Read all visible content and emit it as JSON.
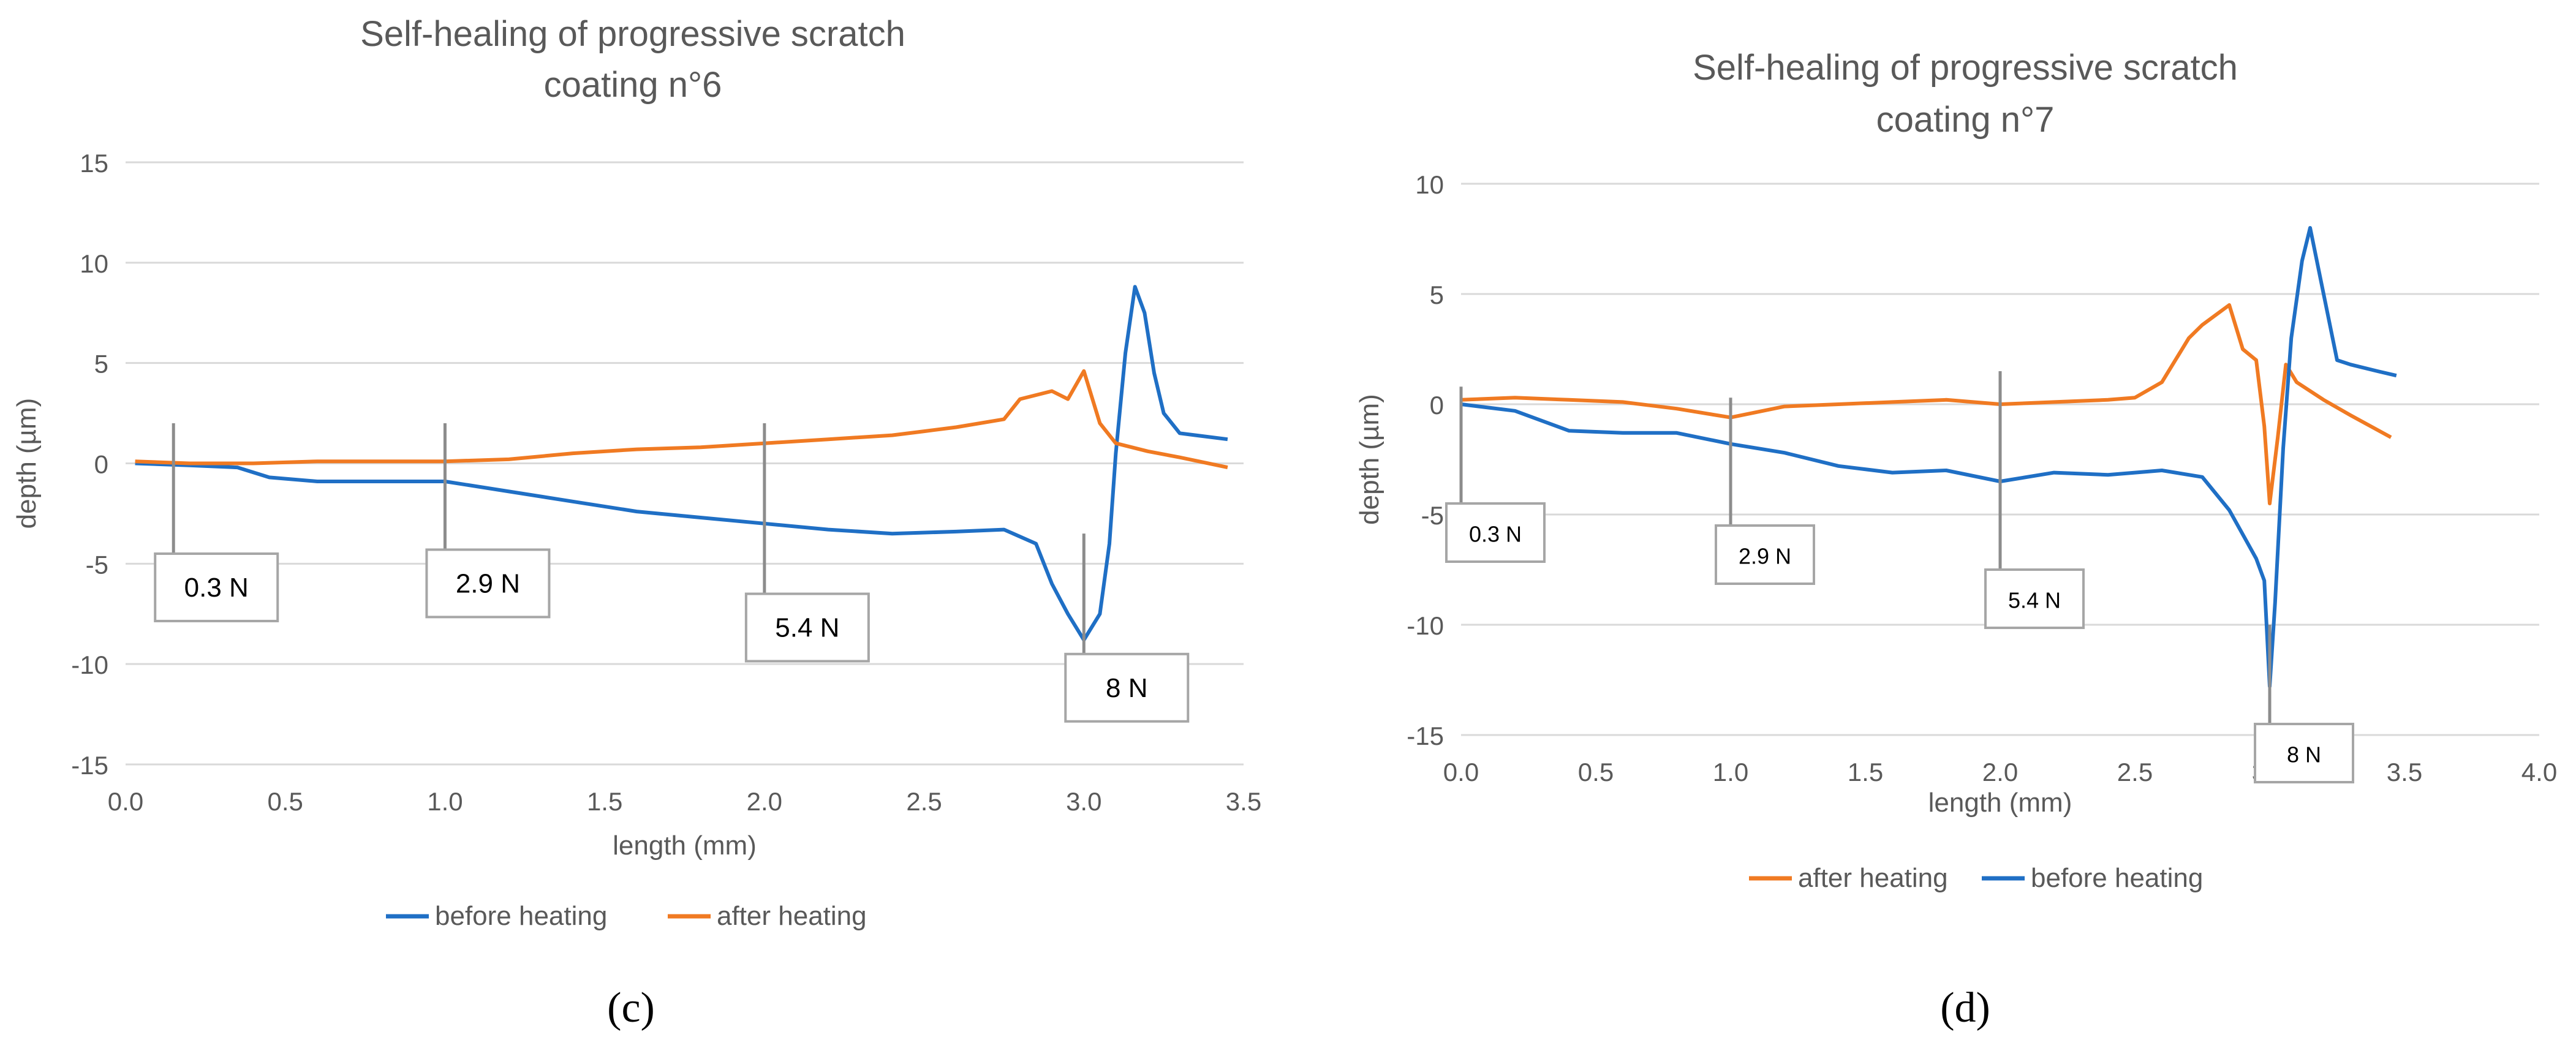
{
  "chart_data": [
    {
      "panel_label": "(c)",
      "type": "line",
      "title_line1": "Self-healing of progressive scratch",
      "title_line2": "coating n°6",
      "xlabel": "length (mm)",
      "ylabel": "depth (µm)",
      "xlim": [
        0,
        3.5
      ],
      "ylim": [
        -15,
        15
      ],
      "x_ticks": [
        0,
        0.5,
        1,
        1.5,
        2,
        2.5,
        3,
        3.5
      ],
      "x_tick_labels": [
        "0.0",
        "0.5",
        "1.0",
        "1.5",
        "2.0",
        "2.5",
        "3.0",
        "3.5"
      ],
      "y_ticks": [
        -15,
        -10,
        -5,
        0,
        5,
        10,
        15
      ],
      "y_tick_labels": [
        "-15",
        "-10",
        "-5",
        "0",
        "5",
        "10",
        "15"
      ],
      "grid": "horizontal",
      "legend_position": "bottom",
      "legend": [
        "before heating",
        "after heating"
      ],
      "series": [
        {
          "name": "before heating",
          "color": "#1f6fc5",
          "points": [
            [
              0.03,
              0
            ],
            [
              0.2,
              -0.1
            ],
            [
              0.35,
              -0.2
            ],
            [
              0.45,
              -0.7
            ],
            [
              0.6,
              -0.9
            ],
            [
              0.8,
              -0.9
            ],
            [
              1.0,
              -0.9
            ],
            [
              1.2,
              -1.4
            ],
            [
              1.4,
              -1.9
            ],
            [
              1.6,
              -2.4
            ],
            [
              1.8,
              -2.7
            ],
            [
              2.0,
              -3.0
            ],
            [
              2.2,
              -3.3
            ],
            [
              2.4,
              -3.5
            ],
            [
              2.6,
              -3.4
            ],
            [
              2.75,
              -3.3
            ],
            [
              2.85,
              -4.0
            ],
            [
              2.9,
              -6.0
            ],
            [
              2.95,
              -7.5
            ],
            [
              3.0,
              -8.8
            ],
            [
              3.05,
              -7.5
            ],
            [
              3.08,
              -4.0
            ],
            [
              3.1,
              0.5
            ],
            [
              3.13,
              5.5
            ],
            [
              3.16,
              8.8
            ],
            [
              3.19,
              7.5
            ],
            [
              3.22,
              4.5
            ],
            [
              3.25,
              2.5
            ],
            [
              3.3,
              1.5
            ],
            [
              3.35,
              1.4
            ],
            [
              3.45,
              1.2
            ]
          ]
        },
        {
          "name": "after heating",
          "color": "#f07a22",
          "points": [
            [
              0.03,
              0.1
            ],
            [
              0.2,
              0.0
            ],
            [
              0.4,
              0.0
            ],
            [
              0.6,
              0.1
            ],
            [
              0.8,
              0.1
            ],
            [
              1.0,
              0.1
            ],
            [
              1.2,
              0.2
            ],
            [
              1.4,
              0.5
            ],
            [
              1.6,
              0.7
            ],
            [
              1.8,
              0.8
            ],
            [
              2.0,
              1.0
            ],
            [
              2.2,
              1.2
            ],
            [
              2.4,
              1.4
            ],
            [
              2.5,
              1.6
            ],
            [
              2.6,
              1.8
            ],
            [
              2.75,
              2.2
            ],
            [
              2.8,
              3.2
            ],
            [
              2.9,
              3.6
            ],
            [
              2.95,
              3.2
            ],
            [
              3.0,
              4.6
            ],
            [
              3.05,
              2.0
            ],
            [
              3.1,
              1.0
            ],
            [
              3.2,
              0.6
            ],
            [
              3.3,
              0.3
            ],
            [
              3.45,
              -0.2
            ]
          ]
        }
      ],
      "annotations": [
        {
          "label": "0.3 N",
          "x": 0.15,
          "y_from": 2,
          "y_to": -4.5
        },
        {
          "label": "2.9 N",
          "x": 1.0,
          "y_from": 2,
          "y_to": -4.3
        },
        {
          "label": "5.4 N",
          "x": 2.0,
          "y_from": 2,
          "y_to": -6.5
        },
        {
          "label": "8 N",
          "x": 3.0,
          "y_from": -3.5,
          "y_to": -9.5
        }
      ]
    },
    {
      "panel_label": "(d)",
      "type": "line",
      "title_line1": "Self-healing of progressive scratch",
      "title_line2": "coating n°7",
      "xlabel": "length (mm)",
      "ylabel": "depth (µm)",
      "xlim": [
        0,
        4
      ],
      "ylim": [
        -15,
        10
      ],
      "x_ticks": [
        0,
        0.5,
        1,
        1.5,
        2,
        2.5,
        3,
        3.5,
        4
      ],
      "x_tick_labels": [
        "0.0",
        "0.5",
        "1.0",
        "1.5",
        "2.0",
        "2.5",
        "3.0",
        "3.5",
        "4.0"
      ],
      "y_ticks": [
        -15,
        -10,
        -5,
        0,
        5,
        10
      ],
      "y_tick_labels": [
        "-15",
        "-10",
        "-5",
        "0",
        "5",
        "10"
      ],
      "grid": "horizontal",
      "legend_position": "bottom",
      "legend": [
        "after heating",
        "before heating"
      ],
      "series": [
        {
          "name": "after heating",
          "color": "#f07a22",
          "points": [
            [
              0.0,
              0.2
            ],
            [
              0.2,
              0.3
            ],
            [
              0.4,
              0.2
            ],
            [
              0.6,
              0.1
            ],
            [
              0.8,
              -0.2
            ],
            [
              1.0,
              -0.6
            ],
            [
              1.2,
              -0.1
            ],
            [
              1.4,
              0.0
            ],
            [
              1.6,
              0.1
            ],
            [
              1.8,
              0.2
            ],
            [
              2.0,
              0.0
            ],
            [
              2.2,
              0.1
            ],
            [
              2.4,
              0.2
            ],
            [
              2.5,
              0.3
            ],
            [
              2.6,
              1.0
            ],
            [
              2.7,
              3.0
            ],
            [
              2.75,
              3.6
            ],
            [
              2.85,
              4.5
            ],
            [
              2.9,
              2.5
            ],
            [
              2.95,
              2.0
            ],
            [
              2.98,
              -1.0
            ],
            [
              3.0,
              -4.5
            ],
            [
              3.03,
              -1.5
            ],
            [
              3.06,
              1.8
            ],
            [
              3.1,
              1.0
            ],
            [
              3.2,
              0.2
            ],
            [
              3.3,
              -0.5
            ],
            [
              3.45,
              -1.5
            ]
          ]
        },
        {
          "name": "before heating",
          "color": "#1f6fc5",
          "points": [
            [
              0.0,
              0.0
            ],
            [
              0.2,
              -0.3
            ],
            [
              0.4,
              -1.2
            ],
            [
              0.6,
              -1.3
            ],
            [
              0.8,
              -1.3
            ],
            [
              1.0,
              -1.8
            ],
            [
              1.2,
              -2.2
            ],
            [
              1.4,
              -2.8
            ],
            [
              1.6,
              -3.1
            ],
            [
              1.8,
              -3.0
            ],
            [
              2.0,
              -3.5
            ],
            [
              2.2,
              -3.1
            ],
            [
              2.4,
              -3.2
            ],
            [
              2.6,
              -3.0
            ],
            [
              2.75,
              -3.3
            ],
            [
              2.85,
              -4.8
            ],
            [
              2.95,
              -7.0
            ],
            [
              2.98,
              -8.0
            ],
            [
              3.0,
              -12.8
            ],
            [
              3.02,
              -9.0
            ],
            [
              3.05,
              -2.0
            ],
            [
              3.08,
              3.0
            ],
            [
              3.12,
              6.5
            ],
            [
              3.15,
              8.0
            ],
            [
              3.2,
              5.0
            ],
            [
              3.25,
              2.0
            ],
            [
              3.3,
              1.8
            ],
            [
              3.4,
              1.5
            ],
            [
              3.47,
              1.3
            ]
          ]
        }
      ],
      "annotations": [
        {
          "label": "0.3 N",
          "x": 0.0,
          "y_from": 0.8,
          "y_to": -4.5
        },
        {
          "label": "2.9 N",
          "x": 1.0,
          "y_from": 0.3,
          "y_to": -5.5
        },
        {
          "label": "5.4 N",
          "x": 2.0,
          "y_from": 1.5,
          "y_to": -7.5
        },
        {
          "label": "8 N",
          "x": 3.0,
          "y_from": -10,
          "y_to": -14.5
        }
      ]
    }
  ]
}
